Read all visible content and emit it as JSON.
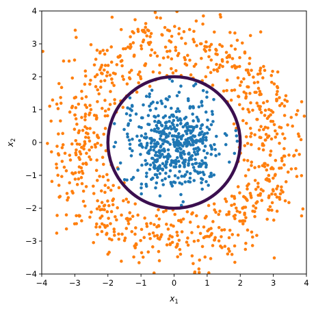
{
  "chart_data": {
    "type": "scatter",
    "title": "",
    "xlabel": "x",
    "xlabel_subscript": "1",
    "ylabel": "x",
    "ylabel_subscript": "2",
    "xlim": [
      -4,
      4
    ],
    "ylim": [
      -4,
      4
    ],
    "x_ticks": [
      -4,
      -3,
      -2,
      -1,
      0,
      1,
      2,
      3,
      4
    ],
    "y_ticks": [
      -4,
      -3,
      -2,
      -1,
      0,
      1,
      2,
      3,
      4
    ],
    "grid": false,
    "series": [
      {
        "color": "#1f77b4",
        "description": "inner Gaussian cluster around origin",
        "center": [
          0,
          0
        ],
        "spread_sd": 0.75,
        "max_radius": 1.95,
        "count": 520
      },
      {
        "color": "#ff7f0e",
        "description": "outer ring of points",
        "center": [
          0,
          0
        ],
        "radius_mean": 3.0,
        "radius_sd": 0.55,
        "min_radius": 1.85,
        "count": 900
      }
    ],
    "decision_boundary": {
      "shape": "circle",
      "center": [
        0,
        0
      ],
      "radius": 2.0,
      "color": "#3b0f4f"
    }
  }
}
